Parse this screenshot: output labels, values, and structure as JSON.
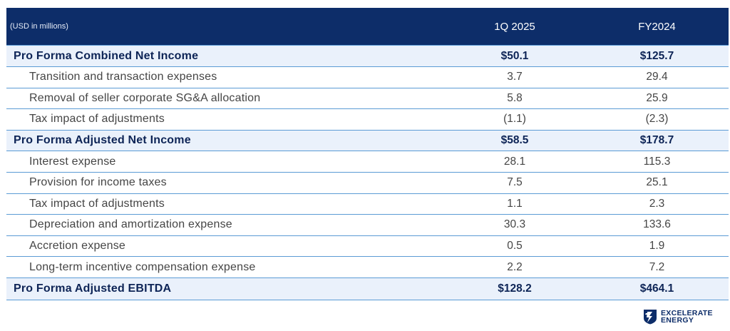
{
  "header": {
    "units_label": "(USD in millions)",
    "col1": "1Q 2025",
    "col2": "FY2024"
  },
  "rows": [
    {
      "label": "Pro Forma Combined Net Income",
      "v1": "$50.1",
      "v2": "$125.7"
    },
    {
      "label": "Transition and transaction expenses",
      "v1": "3.7",
      "v2": "29.4"
    },
    {
      "label": "Removal of seller corporate SG&A allocation",
      "v1": "5.8",
      "v2": "25.9"
    },
    {
      "label": "Tax impact of adjustments",
      "v1": "(1.1)",
      "v2": "(2.3)"
    },
    {
      "label": "Pro Forma Adjusted Net Income",
      "v1": "$58.5",
      "v2": "$178.7"
    },
    {
      "label": "Interest expense",
      "v1": "28.1",
      "v2": "115.3"
    },
    {
      "label": "Provision for income taxes",
      "v1": "7.5",
      "v2": "25.1"
    },
    {
      "label": "Tax impact of adjustments",
      "v1": "1.1",
      "v2": "2.3"
    },
    {
      "label": "Depreciation and amortization expense",
      "v1": "30.3",
      "v2": "133.6"
    },
    {
      "label": "Accretion expense",
      "v1": "0.5",
      "v2": "1.9"
    },
    {
      "label": "Long-term incentive compensation expense",
      "v1": "2.2",
      "v2": "7.2"
    },
    {
      "label": "Pro Forma Adjusted EBITDA",
      "v1": "$128.2",
      "v2": "$464.1"
    }
  ],
  "brand": {
    "line1": "EXCELERATE",
    "line2": "ENERGY",
    "icon": "excelerate-logo-icon"
  }
}
